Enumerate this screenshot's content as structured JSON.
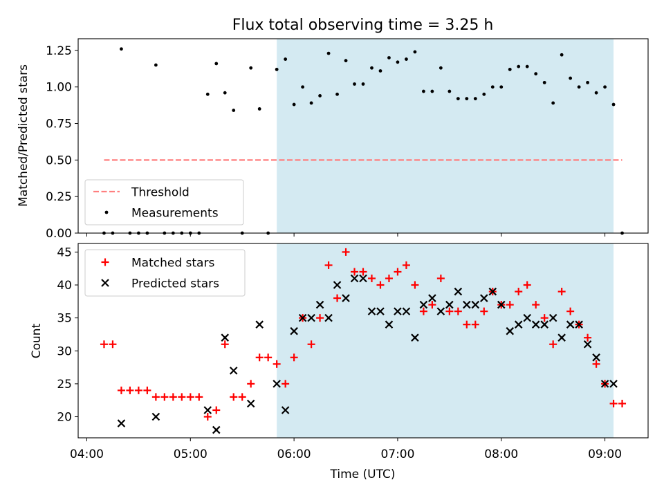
{
  "figure": {
    "title": "Flux total observing time = 3.25 h",
    "xlabel": "Time (UTC)",
    "x_ticks": [
      "04:00",
      "05:00",
      "06:00",
      "07:00",
      "08:00",
      "09:00"
    ]
  },
  "colors": {
    "shade": "#add8e6",
    "threshold": "#ff7f7f",
    "measurement": "#000000",
    "matched": "#ff0000",
    "predicted": "#000000"
  },
  "chart_data": [
    {
      "type": "scatter",
      "title": "Flux total observing time = 3.25 h",
      "ylabel": "Matched/Predicted stars",
      "xlim": [
        "03:55",
        "09:25"
      ],
      "ylim": [
        0,
        1.33
      ],
      "yticks": [
        "0.00",
        "0.25",
        "0.50",
        "0.75",
        "1.00",
        "1.25"
      ],
      "grid": false,
      "legend_position": "lower-left",
      "shaded_span": [
        "05:50",
        "09:05"
      ],
      "threshold": {
        "name": "Threshold",
        "value": 0.5,
        "x_range": [
          "04:10",
          "09:10"
        ]
      },
      "series": [
        {
          "name": "Measurements",
          "x": [
            "04:10",
            "04:15",
            "04:20",
            "04:25",
            "04:30",
            "04:35",
            "04:40",
            "04:45",
            "04:50",
            "04:55",
            "05:00",
            "05:05",
            "05:10",
            "05:15",
            "05:20",
            "05:25",
            "05:30",
            "05:35",
            "05:40",
            "05:45",
            "05:50",
            "05:55",
            "06:00",
            "06:05",
            "06:10",
            "06:15",
            "06:20",
            "06:25",
            "06:30",
            "06:35",
            "06:40",
            "06:45",
            "06:50",
            "06:55",
            "07:00",
            "07:05",
            "07:10",
            "07:15",
            "07:20",
            "07:25",
            "07:30",
            "07:35",
            "07:40",
            "07:45",
            "07:50",
            "07:55",
            "08:00",
            "08:05",
            "08:10",
            "08:15",
            "08:20",
            "08:25",
            "08:30",
            "08:35",
            "08:40",
            "08:45",
            "08:50",
            "08:55",
            "09:00",
            "09:05",
            "09:10"
          ],
          "y": [
            0,
            0,
            1.26,
            0,
            0,
            0,
            1.15,
            0,
            0,
            0,
            0,
            0,
            0.95,
            1.16,
            0.96,
            0.84,
            0,
            1.13,
            0.85,
            0,
            1.12,
            1.19,
            0.88,
            1.0,
            0.89,
            0.94,
            1.23,
            0.95,
            1.18,
            1.02,
            1.02,
            1.13,
            1.11,
            1.2,
            1.17,
            1.19,
            1.24,
            0.97,
            0.97,
            1.13,
            0.97,
            0.92,
            0.92,
            0.92,
            0.95,
            1.0,
            1.0,
            1.12,
            1.14,
            1.14,
            1.09,
            1.03,
            0.89,
            1.22,
            1.06,
            1.0,
            1.03,
            0.96,
            1.0,
            0.88,
            0
          ]
        }
      ]
    },
    {
      "type": "scatter",
      "xlabel": "Time (UTC)",
      "ylabel": "Count",
      "xlim": [
        "03:55",
        "09:25"
      ],
      "ylim": [
        16.8,
        46.3
      ],
      "yticks": [
        "20",
        "25",
        "30",
        "35",
        "40",
        "45"
      ],
      "grid": false,
      "legend_position": "upper-left",
      "shaded_span": [
        "05:50",
        "09:05"
      ],
      "series": [
        {
          "name": "Matched stars",
          "x": [
            "04:10",
            "04:15",
            "04:20",
            "04:25",
            "04:30",
            "04:35",
            "04:40",
            "04:45",
            "04:50",
            "04:55",
            "05:00",
            "05:05",
            "05:10",
            "05:15",
            "05:20",
            "05:25",
            "05:30",
            "05:35",
            "05:40",
            "05:45",
            "05:50",
            "05:55",
            "06:00",
            "06:05",
            "06:10",
            "06:15",
            "06:20",
            "06:25",
            "06:30",
            "06:35",
            "06:40",
            "06:45",
            "06:50",
            "06:55",
            "07:00",
            "07:05",
            "07:10",
            "07:15",
            "07:20",
            "07:25",
            "07:30",
            "07:35",
            "07:40",
            "07:45",
            "07:50",
            "07:55",
            "08:00",
            "08:05",
            "08:10",
            "08:15",
            "08:20",
            "08:25",
            "08:30",
            "08:35",
            "08:40",
            "08:45",
            "08:50",
            "08:55",
            "09:00",
            "09:05",
            "09:10"
          ],
          "y": [
            31,
            31,
            24,
            24,
            24,
            24,
            23,
            23,
            23,
            23,
            23,
            23,
            20,
            21,
            31,
            23,
            23,
            25,
            29,
            29,
            28,
            25,
            29,
            35,
            31,
            35,
            43,
            38,
            45,
            42,
            42,
            41,
            40,
            41,
            42,
            43,
            40,
            36,
            37,
            41,
            36,
            36,
            34,
            34,
            36,
            39,
            37,
            37,
            39,
            40,
            37,
            35,
            31,
            39,
            36,
            34,
            32,
            28,
            25,
            22,
            22
          ]
        },
        {
          "name": "Predicted stars",
          "x": [
            "04:20",
            "04:40",
            "05:10",
            "05:15",
            "05:20",
            "05:25",
            "05:35",
            "05:40",
            "05:50",
            "05:55",
            "06:00",
            "06:05",
            "06:10",
            "06:15",
            "06:20",
            "06:25",
            "06:30",
            "06:35",
            "06:40",
            "06:45",
            "06:50",
            "06:55",
            "07:00",
            "07:05",
            "07:10",
            "07:15",
            "07:20",
            "07:25",
            "07:30",
            "07:35",
            "07:40",
            "07:45",
            "07:50",
            "07:55",
            "08:00",
            "08:05",
            "08:10",
            "08:15",
            "08:20",
            "08:25",
            "08:30",
            "08:35",
            "08:40",
            "08:45",
            "08:50",
            "08:55",
            "09:00",
            "09:05"
          ],
          "y": [
            19,
            20,
            21,
            18,
            32,
            27,
            22,
            34,
            25,
            21,
            33,
            35,
            35,
            37,
            35,
            40,
            38,
            41,
            41,
            36,
            36,
            34,
            36,
            36,
            32,
            37,
            38,
            36,
            37,
            39,
            37,
            37,
            38,
            39,
            37,
            33,
            34,
            35,
            34,
            34,
            35,
            32,
            34,
            34,
            31,
            29,
            25,
            25
          ]
        }
      ]
    }
  ]
}
